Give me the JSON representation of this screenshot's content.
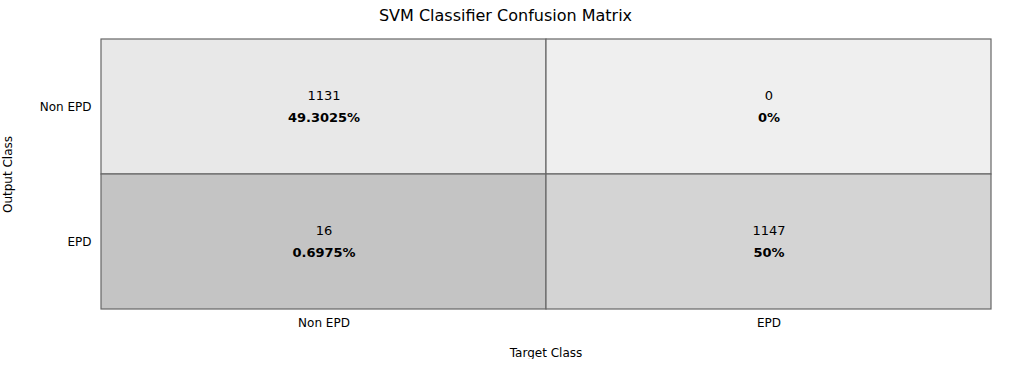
{
  "chart_data": {
    "type": "heatmap",
    "title": "SVM Classifier Confusion Matrix",
    "xlabel": "Target Class",
    "ylabel": "Output Class",
    "x": [
      "Non EPD",
      "EPD"
    ],
    "y": [
      "Non EPD",
      "EPD"
    ],
    "values": [
      [
        1131,
        0
      ],
      [
        16,
        1147
      ]
    ],
    "percentages": [
      [
        49.3025,
        0
      ],
      [
        0.6975,
        50
      ]
    ],
    "percentage_labels": [
      [
        "49.3025%",
        "0%"
      ],
      [
        "0.6975%",
        "50%"
      ]
    ],
    "colors": [
      [
        "#e8e8e8",
        "#efefef"
      ],
      [
        "#c4c4c4",
        "#d4d4d4"
      ]
    ],
    "data_labels": true,
    "grid": false
  }
}
